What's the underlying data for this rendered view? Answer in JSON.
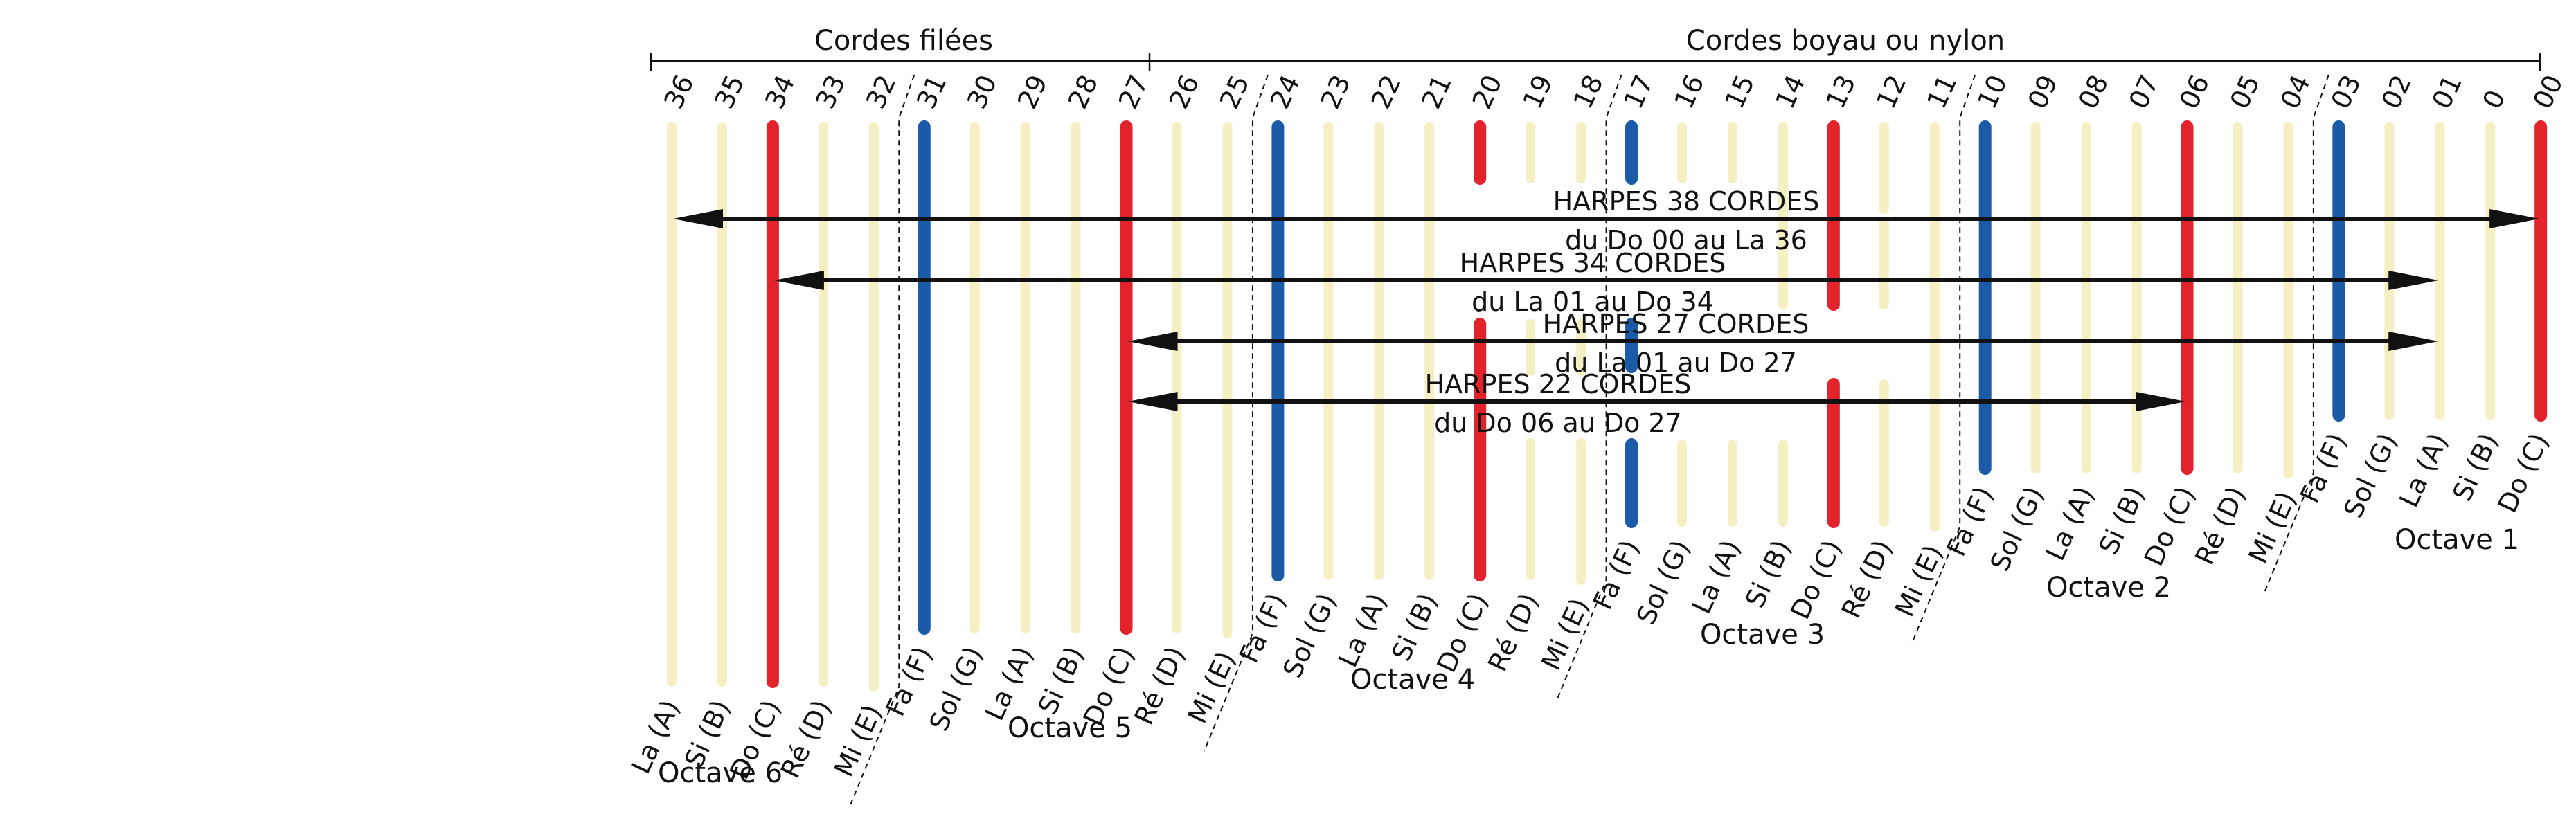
{
  "headers": {
    "wound": "Cordes filées",
    "gut": "Cordes boyau ou nylon"
  },
  "colors": {
    "C": "#e3232c",
    "F": "#1a5aa7",
    "other": "#f4f0c4",
    "line": "#111111"
  },
  "strings": [
    {
      "num": "36",
      "note": "La (A)"
    },
    {
      "num": "35",
      "note": "Si (B)"
    },
    {
      "num": "34",
      "note": "Do (C)"
    },
    {
      "num": "33",
      "note": "Ré (D)"
    },
    {
      "num": "32",
      "note": "Mi (E)"
    },
    {
      "num": "31",
      "note": "Fa (F)"
    },
    {
      "num": "30",
      "note": "Sol (G)"
    },
    {
      "num": "29",
      "note": "La (A)"
    },
    {
      "num": "28",
      "note": "Si (B)"
    },
    {
      "num": "27",
      "note": "Do (C)"
    },
    {
      "num": "26",
      "note": "Ré (D)"
    },
    {
      "num": "25",
      "note": "Mi (E)"
    },
    {
      "num": "24",
      "note": "Fa (F)"
    },
    {
      "num": "23",
      "note": "Sol (G)"
    },
    {
      "num": "22",
      "note": "La (A)"
    },
    {
      "num": "21",
      "note": "Si (B)"
    },
    {
      "num": "20",
      "note": "Do (C)"
    },
    {
      "num": "19",
      "note": "Ré (D)"
    },
    {
      "num": "18",
      "note": "Mi (E)"
    },
    {
      "num": "17",
      "note": "Fa (F)"
    },
    {
      "num": "16",
      "note": "Sol (G)"
    },
    {
      "num": "15",
      "note": "La (A)"
    },
    {
      "num": "14",
      "note": "Si (B)"
    },
    {
      "num": "13",
      "note": "Do (C)"
    },
    {
      "num": "12",
      "note": "Ré (D)"
    },
    {
      "num": "11",
      "note": "Mi (E)"
    },
    {
      "num": "10",
      "note": "Fa (F)"
    },
    {
      "num": "09",
      "note": "Sol (G)"
    },
    {
      "num": "08",
      "note": "La (A)"
    },
    {
      "num": "07",
      "note": "Si (B)"
    },
    {
      "num": "06",
      "note": "Do (C)"
    },
    {
      "num": "05",
      "note": "Ré (D)"
    },
    {
      "num": "04",
      "note": "Mi (E)"
    },
    {
      "num": "03",
      "note": "Fa (F)"
    },
    {
      "num": "02",
      "note": "Sol (G)"
    },
    {
      "num": "01",
      "note": "La (A)"
    },
    {
      "num": "0",
      "note": "Si (B)"
    },
    {
      "num": "00",
      "note": "Do (C)"
    }
  ],
  "octaves": [
    "Octave 6",
    "Octave 5",
    "Octave 4",
    "Octave 3",
    "Octave 2",
    "Octave 1"
  ],
  "ranges": [
    {
      "title": "HARPES 38 CORDES",
      "subtitle": "du Do 00 au La 36",
      "from": "00",
      "to": "36"
    },
    {
      "title": "HARPES 34 CORDES",
      "subtitle": "du La 01 au Do 34",
      "from": "01",
      "to": "34"
    },
    {
      "title": "HARPES 27 CORDES",
      "subtitle": "du La 01 au Do 27",
      "from": "01",
      "to": "27"
    },
    {
      "title": "HARPES 22 CORDES",
      "subtitle": "du Do 06 au Do 27",
      "from": "06",
      "to": "27"
    }
  ]
}
